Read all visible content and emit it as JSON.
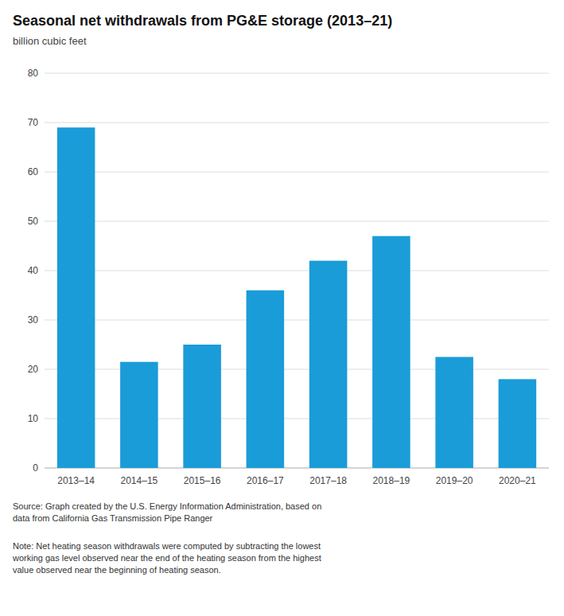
{
  "chart_data": {
    "type": "bar",
    "title": "Seasonal net withdrawals from PG&E storage (2013–21)",
    "subtitle": "billion cubic feet",
    "categories": [
      "2013–14",
      "2014–15",
      "2015–16",
      "2016–17",
      "2017–18",
      "2018–19",
      "2019–20",
      "2020–21"
    ],
    "values": [
      69.0,
      21.5,
      25.0,
      36.0,
      42.0,
      47.0,
      22.5,
      18.0
    ],
    "color": "#1a9cd8",
    "ylim": [
      0,
      80
    ],
    "yticks": [
      0,
      10,
      20,
      30,
      40,
      50,
      60,
      70,
      80
    ],
    "grid": true,
    "source": "Source: Graph created by the U.S. Energy Information Administration, based on\ndata from California Gas Transmission Pipe Ranger",
    "note": "Note: Net heating season withdrawals were computed by subtracting the lowest\nworking gas level observed near the end of the heating season from the highest\nvalue observed near the beginning of heating season."
  }
}
